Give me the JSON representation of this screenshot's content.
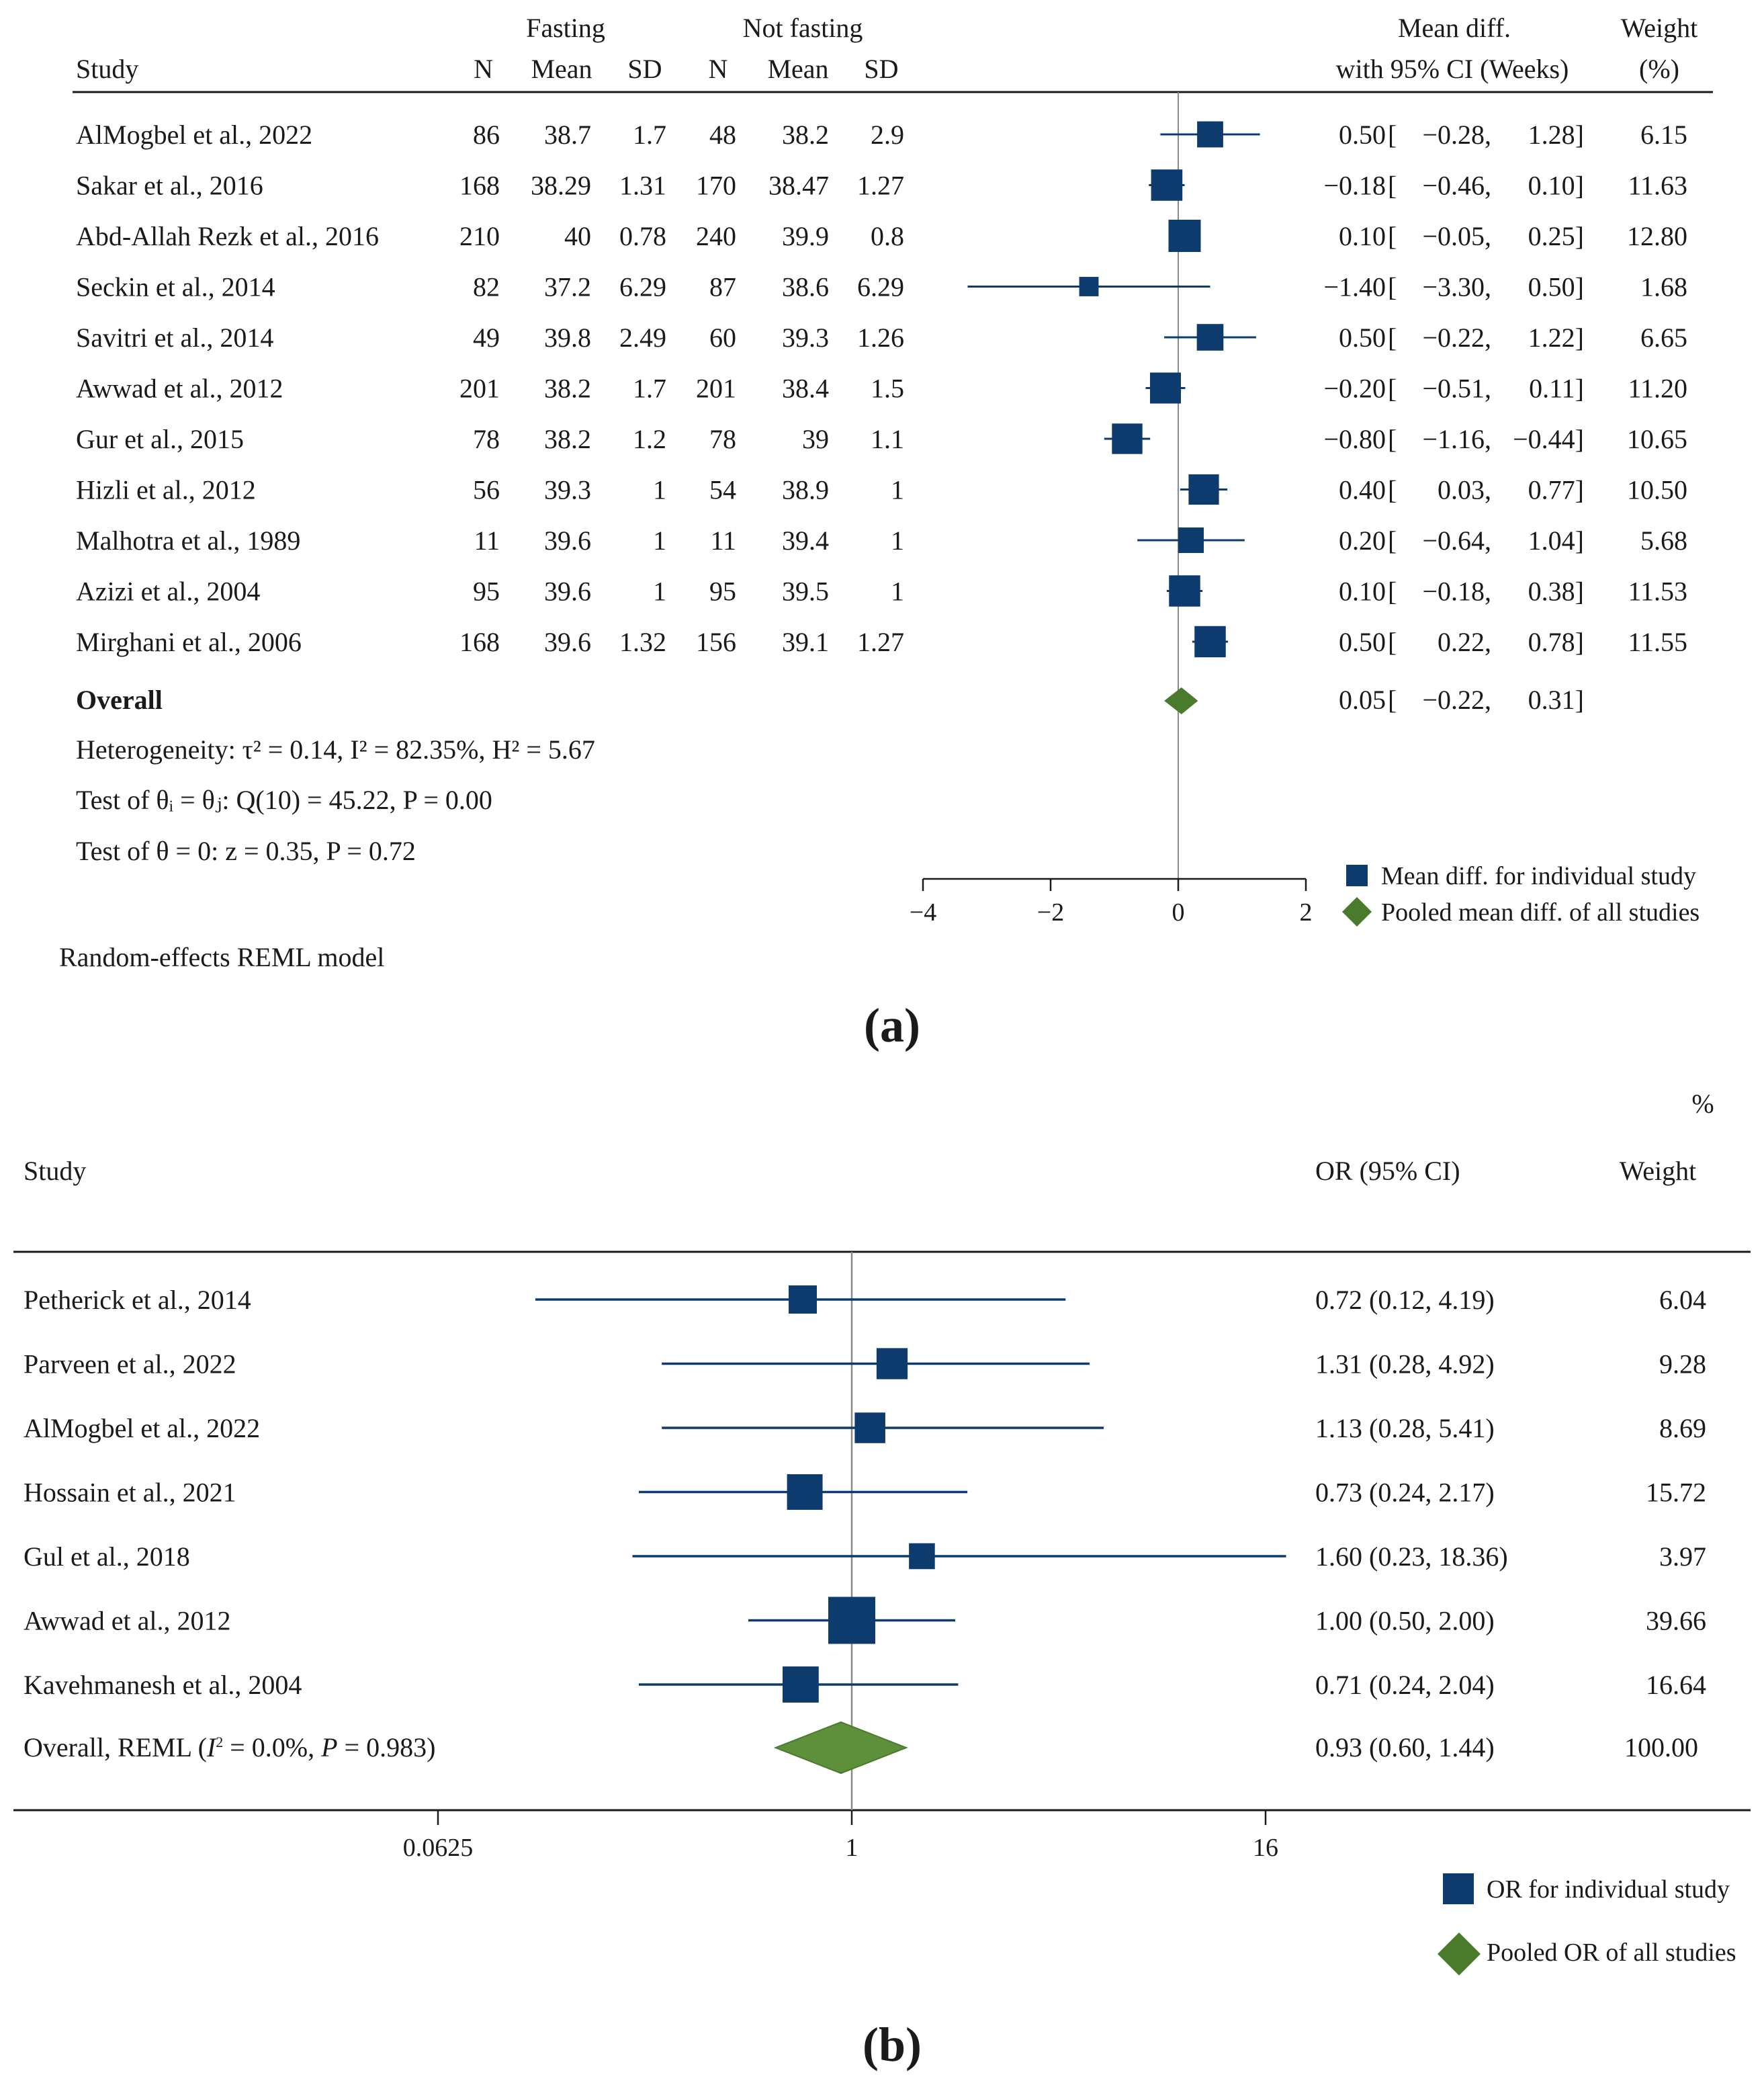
{
  "chart_data": [
    {
      "type": "forest",
      "panel": "(a)",
      "headers": {
        "study": "Study",
        "group1": "Fasting",
        "group2": "Not fasting",
        "n": "N",
        "mean": "Mean",
        "sd": "SD",
        "effect_line1": "Mean diff.",
        "effect_line2": "with 95% CI (Weeks)",
        "weight_line1": "Weight",
        "weight_line2": "(%)"
      },
      "studies": [
        {
          "name": "AlMogbel et al., 2022",
          "n1": "86",
          "mean1": "38.7",
          "sd1": "1.7",
          "n2": "48",
          "mean2": "38.2",
          "sd2": "2.9",
          "est": 0.5,
          "lo": -0.28,
          "hi": 1.28,
          "est_text": "0.50",
          "lo_text": "−0.28,",
          "hi_text": "1.28]",
          "weight": 6.15,
          "weight_text": "6.15"
        },
        {
          "name": "Sakar et al., 2016",
          "n1": "168",
          "mean1": "38.29",
          "sd1": "1.31",
          "n2": "170",
          "mean2": "38.47",
          "sd2": "1.27",
          "est": -0.18,
          "lo": -0.46,
          "hi": 0.1,
          "est_text": "−0.18",
          "lo_text": "−0.46,",
          "hi_text": "0.10]",
          "weight": 11.63,
          "weight_text": "11.63"
        },
        {
          "name": "Abd-Allah Rezk  et al., 2016",
          "n1": "210",
          "mean1": "40",
          "sd1": "0.78",
          "n2": "240",
          "mean2": "39.9",
          "sd2": "0.8",
          "est": 0.1,
          "lo": -0.05,
          "hi": 0.25,
          "est_text": "0.10",
          "lo_text": "−0.05,",
          "hi_text": "0.25]",
          "weight": 12.8,
          "weight_text": "12.80"
        },
        {
          "name": "Seckin et al., 2014",
          "n1": "82",
          "mean1": "37.2",
          "sd1": "6.29",
          "n2": "87",
          "mean2": "38.6",
          "sd2": "6.29",
          "est": -1.4,
          "lo": -3.3,
          "hi": 0.5,
          "est_text": "−1.40",
          "lo_text": "−3.30,",
          "hi_text": "0.50]",
          "weight": 1.68,
          "weight_text": "1.68"
        },
        {
          "name": "Savitri et al., 2014",
          "n1": "49",
          "mean1": "39.8",
          "sd1": "2.49",
          "n2": "60",
          "mean2": "39.3",
          "sd2": "1.26",
          "est": 0.5,
          "lo": -0.22,
          "hi": 1.22,
          "est_text": "0.50",
          "lo_text": "−0.22,",
          "hi_text": "1.22]",
          "weight": 6.65,
          "weight_text": "6.65"
        },
        {
          "name": "Awwad et al., 2012",
          "n1": "201",
          "mean1": "38.2",
          "sd1": "1.7",
          "n2": "201",
          "mean2": "38.4",
          "sd2": "1.5",
          "est": -0.2,
          "lo": -0.51,
          "hi": 0.11,
          "est_text": "−0.20",
          "lo_text": "−0.51,",
          "hi_text": "0.11]",
          "weight": 11.2,
          "weight_text": "11.20"
        },
        {
          "name": "Gur et al., 2015",
          "n1": "78",
          "mean1": "38.2",
          "sd1": "1.2",
          "n2": "78",
          "mean2": "39",
          "sd2": "1.1",
          "est": -0.8,
          "lo": -1.16,
          "hi": -0.44,
          "est_text": "−0.80",
          "lo_text": "−1.16,",
          "hi_text": "−0.44]",
          "weight": 10.65,
          "weight_text": "10.65"
        },
        {
          "name": "Hizli et al., 2012",
          "n1": "56",
          "mean1": "39.3",
          "sd1": "1",
          "n2": "54",
          "mean2": "38.9",
          "sd2": "1",
          "est": 0.4,
          "lo": 0.03,
          "hi": 0.77,
          "est_text": "0.40",
          "lo_text": "0.03,",
          "hi_text": "0.77]",
          "weight": 10.5,
          "weight_text": "10.50"
        },
        {
          "name": "Malhotra et al., 1989",
          "n1": "11",
          "mean1": "39.6",
          "sd1": "1",
          "n2": "11",
          "mean2": "39.4",
          "sd2": "1",
          "est": 0.2,
          "lo": -0.64,
          "hi": 1.04,
          "est_text": "0.20",
          "lo_text": "−0.64,",
          "hi_text": "1.04]",
          "weight": 5.68,
          "weight_text": "5.68"
        },
        {
          "name": "Azizi et al., 2004",
          "n1": "95",
          "mean1": "39.6",
          "sd1": "1",
          "n2": "95",
          "mean2": "39.5",
          "sd2": "1",
          "est": 0.1,
          "lo": -0.18,
          "hi": 0.38,
          "est_text": "0.10",
          "lo_text": "−0.18,",
          "hi_text": "0.38]",
          "weight": 11.53,
          "weight_text": "11.53"
        },
        {
          "name": "Mirghani et al., 2006",
          "n1": "168",
          "mean1": "39.6",
          "sd1": "1.32",
          "n2": "156",
          "mean2": "39.1",
          "sd2": "1.27",
          "est": 0.5,
          "lo": 0.22,
          "hi": 0.78,
          "est_text": "0.50",
          "lo_text": "0.22,",
          "hi_text": "0.78]",
          "weight": 11.55,
          "weight_text": "11.55"
        }
      ],
      "overall": {
        "label": "Overall",
        "est": 0.05,
        "lo": -0.22,
        "hi": 0.31,
        "est_text": "0.05",
        "lo_text": "−0.22,",
        "hi_text": "0.31]"
      },
      "heterogeneity": "Heterogeneity: τ² = 0.14, I² = 82.35%, H² = 5.67",
      "test_groups": "Test of θᵢ = θⱼ: Q(10) = 45.22, P = 0.00",
      "test_zero": "Test of θ = 0: z = 0.35, P = 0.72",
      "model": "Random-effects REML model",
      "xlim": [
        -4,
        2
      ],
      "xticks": [
        -4,
        -2,
        0,
        2
      ],
      "xtick_labels": [
        "−4",
        "−2",
        "0",
        "2"
      ],
      "legend": [
        "Mean diff. for individual study",
        "Pooled mean diff. of all studies"
      ],
      "colors": {
        "marker": "#0d3b6e",
        "pooled": "#4a7a2c"
      }
    },
    {
      "type": "forest",
      "panel": "(b)",
      "headers": {
        "study": "Study",
        "effect": "OR (95% CI)",
        "weight_line1": "%",
        "weight_line2": "Weight"
      },
      "studies": [
        {
          "name": "Petherick et al., 2014",
          "est": 0.72,
          "lo": 0.12,
          "hi": 4.19,
          "text": "0.72 (0.12, 4.19)",
          "weight": 6.04,
          "weight_text": "6.04"
        },
        {
          "name": "Parveen et al., 2022",
          "est": 1.31,
          "lo": 0.28,
          "hi": 4.92,
          "text": "1.31 (0.28, 4.92)",
          "weight": 9.28,
          "weight_text": "9.28"
        },
        {
          "name": "AlMogbel et al., 2022",
          "est": 1.13,
          "lo": 0.28,
          "hi": 5.41,
          "text": "1.13 (0.28, 5.41)",
          "weight": 8.69,
          "weight_text": "8.69"
        },
        {
          "name": "Hossain et al., 2021",
          "est": 0.73,
          "lo": 0.24,
          "hi": 2.17,
          "text": "0.73 (0.24, 2.17)",
          "weight": 15.72,
          "weight_text": "15.72"
        },
        {
          "name": "Gul et al., 2018",
          "est": 1.6,
          "lo": 0.23,
          "hi": 18.36,
          "text": "1.60 (0.23, 18.36)",
          "weight": 3.97,
          "weight_text": "3.97"
        },
        {
          "name": "Awwad et al., 2012",
          "est": 1.0,
          "lo": 0.5,
          "hi": 2.0,
          "text": "1.00 (0.50, 2.00)",
          "weight": 39.66,
          "weight_text": "39.66"
        },
        {
          "name": "Kavehmanesh et al., 2004",
          "est": 0.71,
          "lo": 0.24,
          "hi": 2.04,
          "text": "0.71 (0.24, 2.04)",
          "weight": 16.64,
          "weight_text": "16.64"
        }
      ],
      "overall": {
        "label_pre": "Overall, REML (",
        "label_post": " = 0.0%, ",
        "label_end": " = 0.983)",
        "est": 0.93,
        "lo": 0.6,
        "hi": 1.44,
        "text": "0.93 (0.60, 1.44)",
        "weight_text": "100.00"
      },
      "x_scale": "log",
      "xticks": [
        0.0625,
        1,
        16
      ],
      "xtick_labels": [
        "0.0625",
        "1",
        "16"
      ],
      "legend": [
        "OR for individual study",
        "Pooled OR of all studies"
      ],
      "colors": {
        "marker": "#0d3b6e",
        "pooled": "#5e8f3a"
      }
    }
  ]
}
